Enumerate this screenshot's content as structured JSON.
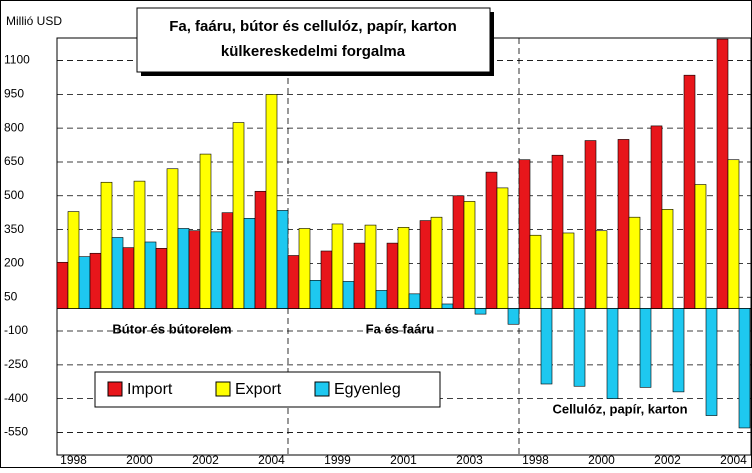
{
  "chart_data": {
    "type": "bar",
    "title": [
      "Fa, faáru, bútor és cellulóz, papír, karton",
      "külkereskedelmi forgalma"
    ],
    "y_label": "Millió USD",
    "categories": [
      "1998",
      null,
      "2000",
      null,
      "2002",
      null,
      "2004",
      null,
      "1999",
      null,
      "2001",
      null,
      "2003",
      null,
      "1998",
      null,
      "2000",
      null,
      "2002",
      null,
      "2004"
    ],
    "groups": [
      "Bútor és bútorelem",
      "Fa és faáru",
      "Cellulóz, papír, karton"
    ],
    "series": [
      {
        "name": "Import",
        "color": "#e8161b",
        "values": [
          205,
          245,
          270,
          267,
          345,
          425,
          520,
          235,
          255,
          290,
          290,
          390,
          500,
          605,
          660,
          680,
          745,
          750,
          810,
          1035,
          1195
        ]
      },
      {
        "name": "Export",
        "color": "#ffff00",
        "values": [
          430,
          560,
          565,
          620,
          685,
          825,
          950,
          355,
          375,
          370,
          360,
          405,
          475,
          535,
          325,
          335,
          345,
          405,
          440,
          550,
          660
        ]
      },
      {
        "name": "Egyenleg",
        "color": "#1ec8f0",
        "values": [
          230,
          315,
          295,
          355,
          340,
          400,
          435,
          125,
          120,
          80,
          65,
          20,
          -25,
          -70,
          -335,
          -345,
          -400,
          -350,
          -370,
          -475,
          -530
        ]
      }
    ],
    "ylim": [
      -650,
      1200
    ],
    "yticks": [
      -550,
      -400,
      -250,
      -100,
      50,
      200,
      350,
      500,
      650,
      800,
      950,
      1100
    ],
    "grid": true,
    "legend": "bottom-left"
  }
}
